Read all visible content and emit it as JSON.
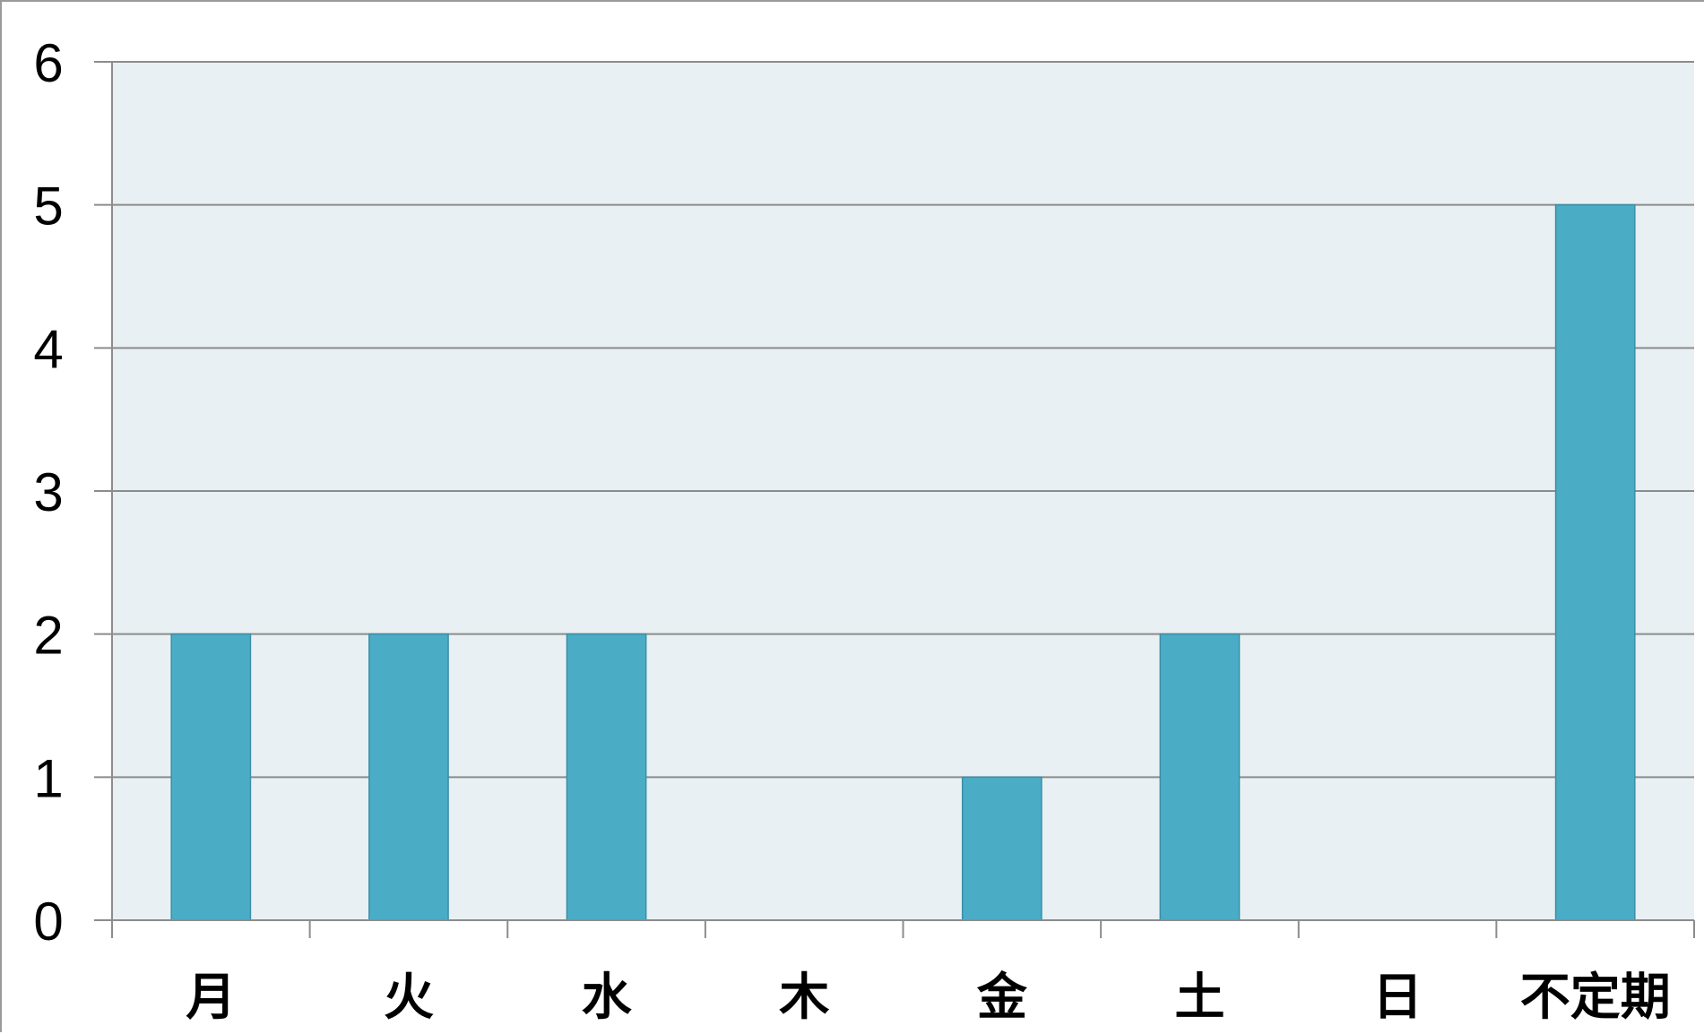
{
  "chart_data": {
    "type": "bar",
    "categories": [
      "月",
      "火",
      "水",
      "木",
      "金",
      "土",
      "日",
      "不定期"
    ],
    "values": [
      2,
      2,
      2,
      0,
      1,
      2,
      0,
      5
    ],
    "ylim": [
      0,
      6
    ],
    "yticks": [
      "0",
      "1",
      "2",
      "3",
      "4",
      "5",
      "6"
    ],
    "grid": true,
    "legend": "none",
    "colors": {
      "bar": "#4BACC6",
      "bar_border": "#3A8FA8",
      "plot_background": "#E8F0F3",
      "grid": "#8C8C8C"
    }
  }
}
